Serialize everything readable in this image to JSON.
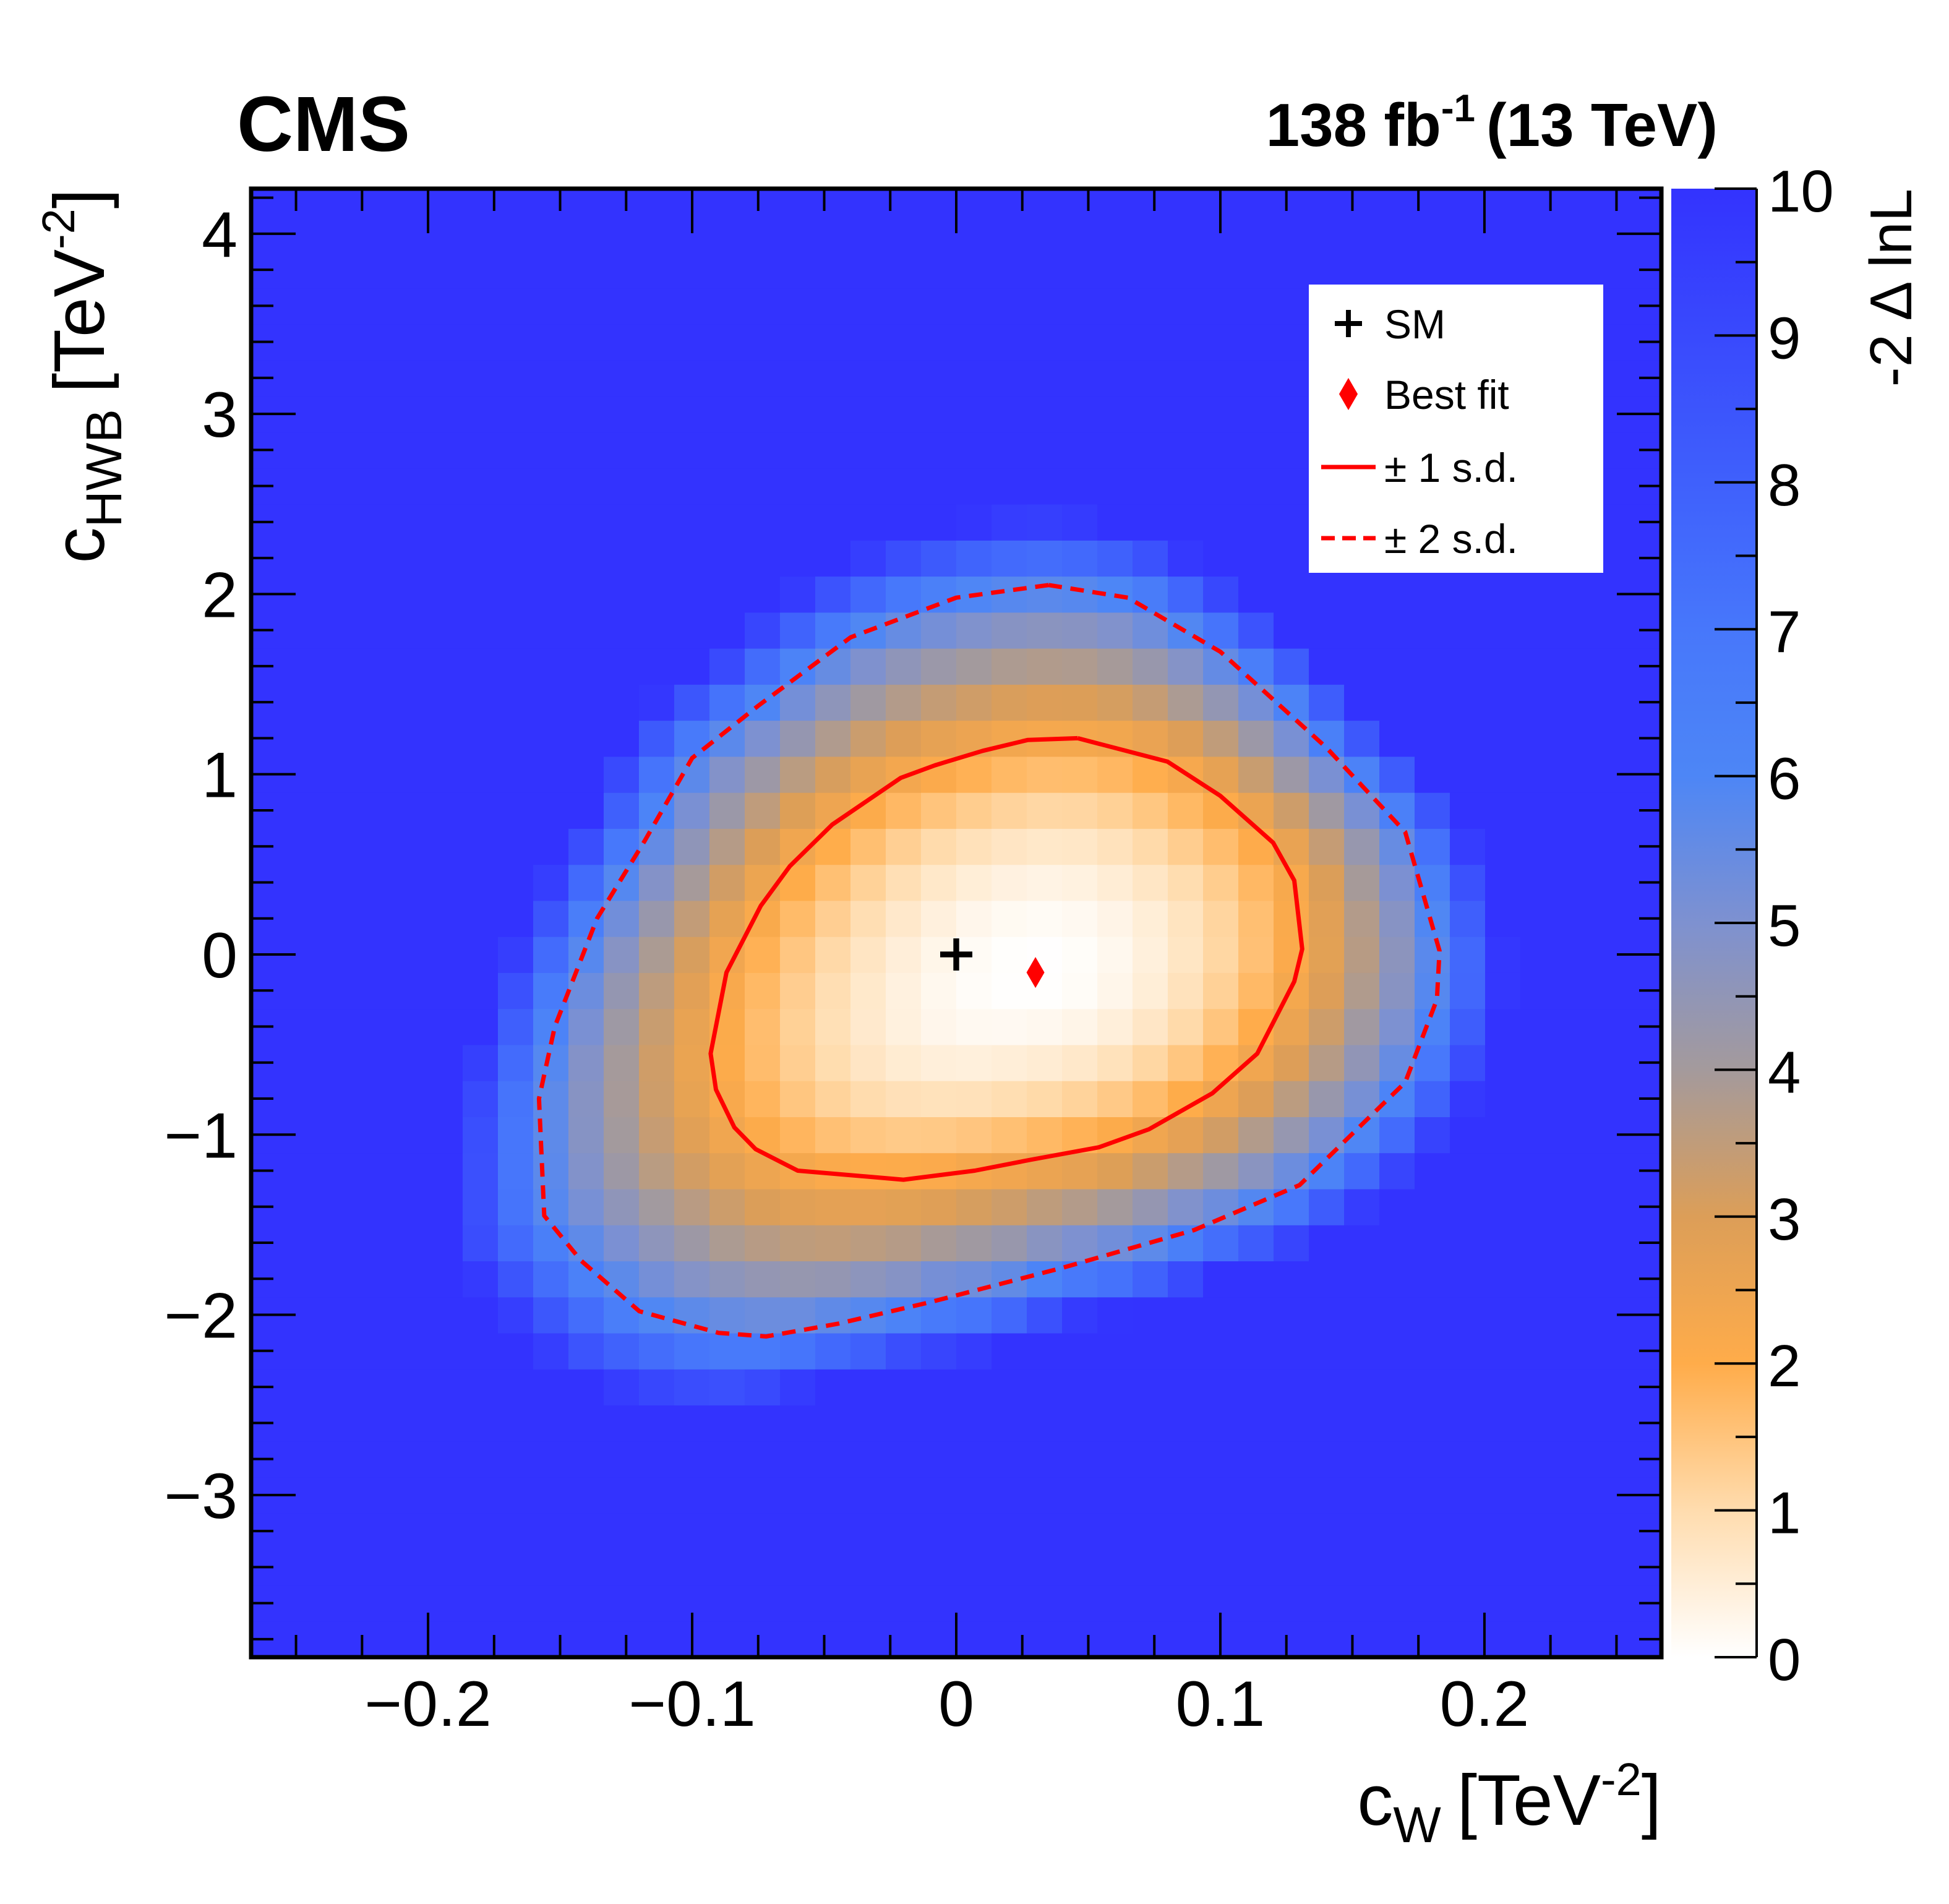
{
  "header": {
    "experiment": "CMS",
    "lumi_prefix": "138 fb",
    "lumi_exp": "-1",
    "energy": "(13 TeV)"
  },
  "chart_data": {
    "type": "heatmap",
    "xlabel": {
      "base": "c",
      "sub": "W",
      "unit_open": "[TeV",
      "unit_exp": "-2",
      "unit_close": "]"
    },
    "ylabel": {
      "base": "c",
      "sub": "HWB",
      "unit_open": "[TeV",
      "unit_exp": "-2",
      "unit_close": "]"
    },
    "zlabel": "-2 Δ lnL",
    "xlim": [
      -0.267,
      0.267
    ],
    "ylim": [
      -3.9,
      4.25
    ],
    "zlim": [
      0,
      10
    ],
    "x_ticks": [
      {
        "value": -0.2,
        "label": "−0.2"
      },
      {
        "value": -0.1,
        "label": "−0.1"
      },
      {
        "value": 0.0,
        "label": "0"
      },
      {
        "value": 0.1,
        "label": "0.1"
      },
      {
        "value": 0.2,
        "label": "0.2"
      }
    ],
    "y_ticks": [
      {
        "value": -3,
        "label": "−3"
      },
      {
        "value": -2,
        "label": "−2"
      },
      {
        "value": -1,
        "label": "−1"
      },
      {
        "value": 0,
        "label": "0"
      },
      {
        "value": 1,
        "label": "1"
      },
      {
        "value": 2,
        "label": "2"
      },
      {
        "value": 3,
        "label": "3"
      },
      {
        "value": 4,
        "label": "4"
      }
    ],
    "z_ticks": [
      {
        "value": 0,
        "label": "0"
      },
      {
        "value": 1,
        "label": "1"
      },
      {
        "value": 2,
        "label": "2"
      },
      {
        "value": 3,
        "label": "3"
      },
      {
        "value": 4,
        "label": "4"
      },
      {
        "value": 5,
        "label": "5"
      },
      {
        "value": 6,
        "label": "6"
      },
      {
        "value": 7,
        "label": "7"
      },
      {
        "value": 8,
        "label": "8"
      },
      {
        "value": 9,
        "label": "9"
      },
      {
        "value": 10,
        "label": "10"
      }
    ],
    "grid": {
      "x_bin": 0.01335,
      "y_bin": 0.2,
      "x_start": -0.267,
      "y_start": -3.9
    },
    "colorscale": [
      {
        "z": 0.0,
        "color": "#ffffff"
      },
      {
        "z": 1.0,
        "color": "#ffdcae"
      },
      {
        "z": 2.0,
        "color": "#ffac4a"
      },
      {
        "z": 3.0,
        "color": "#dc9e58"
      },
      {
        "z": 4.0,
        "color": "#a49a9c"
      },
      {
        "z": 5.0,
        "color": "#7e91d0"
      },
      {
        "z": 6.0,
        "color": "#4d86f6"
      },
      {
        "z": 7.0,
        "color": "#4777fb"
      },
      {
        "z": 8.0,
        "color": "#3f60fc"
      },
      {
        "z": 10.0,
        "color": "#3333fe"
      }
    ],
    "points": [
      {
        "name": "SM",
        "marker": "cross",
        "x": 0.0,
        "y": 0.0,
        "color": "#000000"
      },
      {
        "name": "Best fit",
        "marker": "diamond",
        "x": 0.03,
        "y": -0.1,
        "color": "#ff0000"
      }
    ],
    "contours": [
      {
        "name": "± 1 s.d.",
        "style": "solid",
        "color": "#ff0000",
        "x": [
          0.046,
          0.027,
          0.01,
          -0.008,
          -0.021,
          -0.047,
          -0.063,
          -0.074,
          -0.087,
          -0.093,
          -0.091,
          -0.084,
          -0.076,
          -0.06,
          -0.02,
          0.007,
          0.028,
          0.054,
          0.073,
          0.097,
          0.114,
          0.128,
          0.131,
          0.128,
          0.12,
          0.1,
          0.08,
          0.046
        ],
        "y": [
          1.2,
          1.19,
          1.13,
          1.05,
          0.98,
          0.72,
          0.49,
          0.27,
          -0.1,
          -0.55,
          -0.75,
          -0.96,
          -1.08,
          -1.2,
          -1.25,
          -1.2,
          -1.14,
          -1.07,
          -0.97,
          -0.77,
          -0.55,
          -0.15,
          0.03,
          0.41,
          0.62,
          0.88,
          1.07,
          1.2
        ]
      },
      {
        "name": "± 2 s.d.",
        "style": "dashed",
        "color": "#ff0000",
        "x": [
          0.035,
          0.0,
          -0.04,
          -0.075,
          -0.1,
          -0.118,
          -0.136,
          -0.152,
          -0.158,
          -0.156,
          -0.142,
          -0.12,
          -0.09,
          -0.072,
          -0.045,
          -0.01,
          0.04,
          0.09,
          0.13,
          0.17,
          0.182,
          0.183,
          0.17,
          0.14,
          0.1,
          0.065,
          0.035
        ],
        "y": [
          2.05,
          1.98,
          1.76,
          1.38,
          1.09,
          0.63,
          0.2,
          -0.4,
          -0.8,
          -1.45,
          -1.7,
          -1.98,
          -2.1,
          -2.12,
          -2.05,
          -1.93,
          -1.74,
          -1.53,
          -1.28,
          -0.71,
          -0.25,
          0.02,
          0.68,
          1.15,
          1.68,
          1.98,
          2.05
        ]
      }
    ],
    "legend": {
      "position": "top-right",
      "entries": [
        {
          "label": "SM",
          "marker": "cross"
        },
        {
          "label": "Best fit",
          "marker": "diamond"
        },
        {
          "label": "± 1 s.d.",
          "marker": "solid-line"
        },
        {
          "label": "± 2 s.d.",
          "marker": "dashed-line"
        }
      ]
    }
  }
}
